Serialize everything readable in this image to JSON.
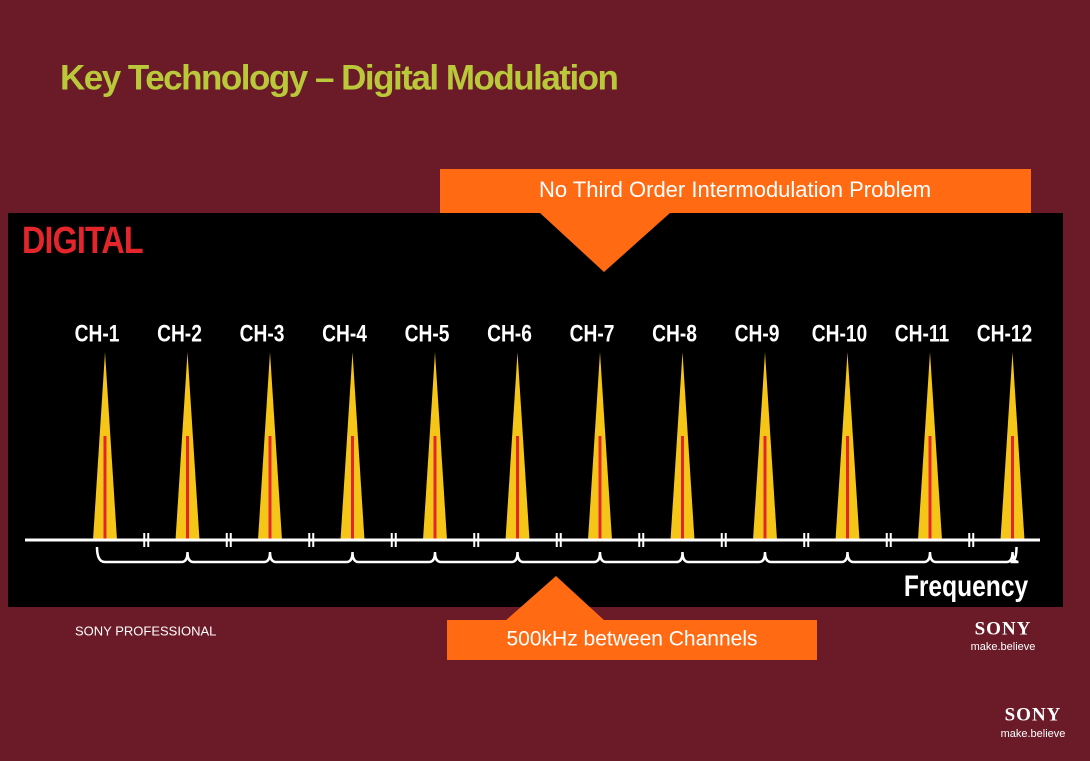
{
  "title": "Key Technology – Digital Modulation",
  "callout_top": "No Third Order Intermodulation Problem",
  "callout_bottom": "500kHz between Channels",
  "panel": {
    "label": "DIGITAL",
    "channels": [
      "CH-1",
      "CH-2",
      "CH-3",
      "CH-4",
      "CH-5",
      "CH-6",
      "CH-7",
      "CH-8",
      "CH-9",
      "CH-10",
      "CH-11",
      "CH-12"
    ],
    "axis_label": "Frequency"
  },
  "footer": {
    "text": "SONY PROFESSIONAL"
  },
  "logo_1": {
    "brand": "SONY",
    "tagline": "make.believe"
  },
  "logo_2": {
    "brand": "SONY",
    "tagline": "make.believe"
  }
}
